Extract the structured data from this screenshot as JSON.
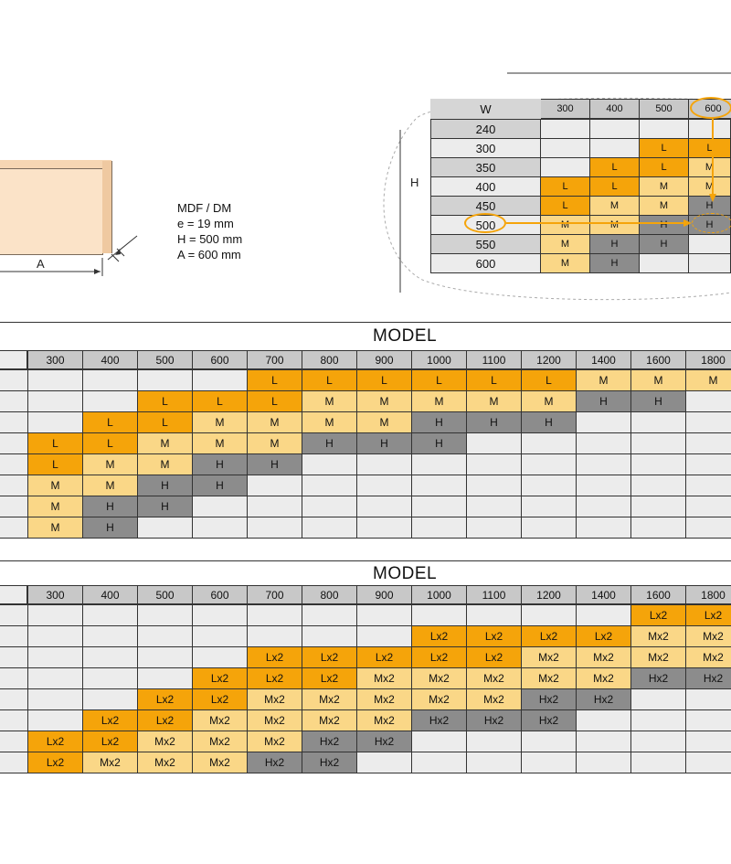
{
  "specs": {
    "material": "MDF / DM",
    "thickness": "e = 19 mm",
    "height": "H = 500 mm",
    "width": "A = 600 mm",
    "dim_label": "A"
  },
  "inset": {
    "w_label": "W",
    "h_label": "H",
    "cols": [
      "300",
      "400",
      "500",
      "600"
    ],
    "rows": [
      {
        "h": "240",
        "cells": [
          "",
          "",
          "",
          ""
        ]
      },
      {
        "h": "300",
        "cells": [
          "",
          "",
          "L",
          "L"
        ]
      },
      {
        "h": "350",
        "cells": [
          "",
          "L",
          "L",
          "M"
        ]
      },
      {
        "h": "400",
        "cells": [
          "L",
          "L",
          "M",
          "M"
        ]
      },
      {
        "h": "450",
        "cells": [
          "L",
          "M",
          "M",
          "H"
        ]
      },
      {
        "h": "500",
        "cells": [
          "M",
          "M",
          "H",
          "H"
        ]
      },
      {
        "h": "550",
        "cells": [
          "M",
          "H",
          "H",
          ""
        ]
      },
      {
        "h": "600",
        "cells": [
          "M",
          "H",
          "",
          ""
        ]
      }
    ]
  },
  "table1": {
    "title": "MODEL",
    "cols": [
      "300",
      "400",
      "500",
      "600",
      "700",
      "800",
      "900",
      "1000",
      "1100",
      "1200",
      "1400",
      "1600",
      "1800"
    ],
    "rows": [
      [
        "",
        "",
        "",
        "",
        "L",
        "L",
        "L",
        "L",
        "L",
        "L",
        "M",
        "M",
        "M"
      ],
      [
        "",
        "",
        "L",
        "L",
        "L",
        "M",
        "M",
        "M",
        "M",
        "M",
        "H",
        "H",
        ""
      ],
      [
        "",
        "L",
        "L",
        "M",
        "M",
        "M",
        "M",
        "H",
        "H",
        "H",
        "",
        "",
        ""
      ],
      [
        "L",
        "L",
        "M",
        "M",
        "M",
        "H",
        "H",
        "H",
        "",
        "",
        "",
        "",
        ""
      ],
      [
        "L",
        "M",
        "M",
        "H",
        "H",
        "",
        "",
        "",
        "",
        "",
        "",
        "",
        ""
      ],
      [
        "M",
        "M",
        "H",
        "H",
        "",
        "",
        "",
        "",
        "",
        "",
        "",
        "",
        ""
      ],
      [
        "M",
        "H",
        "H",
        "",
        "",
        "",
        "",
        "",
        "",
        "",
        "",
        "",
        ""
      ],
      [
        "M",
        "H",
        "",
        "",
        "",
        "",
        "",
        "",
        "",
        "",
        "",
        "",
        ""
      ]
    ]
  },
  "table2": {
    "title": "MODEL",
    "cols": [
      "300",
      "400",
      "500",
      "600",
      "700",
      "800",
      "900",
      "1000",
      "1100",
      "1200",
      "1400",
      "1600",
      "1800"
    ],
    "rows": [
      [
        "",
        "",
        "",
        "",
        "",
        "",
        "",
        "",
        "",
        "",
        "",
        "Lx2",
        "Lx2"
      ],
      [
        "",
        "",
        "",
        "",
        "",
        "",
        "",
        "Lx2",
        "Lx2",
        "Lx2",
        "Lx2",
        "Mx2",
        "Mx2"
      ],
      [
        "",
        "",
        "",
        "",
        "Lx2",
        "Lx2",
        "Lx2",
        "Lx2",
        "Lx2",
        "Mx2",
        "Mx2",
        "Mx2",
        "Mx2"
      ],
      [
        "",
        "",
        "",
        "Lx2",
        "Lx2",
        "Lx2",
        "Mx2",
        "Mx2",
        "Mx2",
        "Mx2",
        "Mx2",
        "Hx2",
        "Hx2"
      ],
      [
        "",
        "",
        "Lx2",
        "Lx2",
        "Mx2",
        "Mx2",
        "Mx2",
        "Mx2",
        "Mx2",
        "Hx2",
        "Hx2",
        "",
        ""
      ],
      [
        "",
        "Lx2",
        "Lx2",
        "Mx2",
        "Mx2",
        "Mx2",
        "Mx2",
        "Hx2",
        "Hx2",
        "Hx2",
        "",
        "",
        ""
      ],
      [
        "Lx2",
        "Lx2",
        "Mx2",
        "Mx2",
        "Mx2",
        "Hx2",
        "Hx2",
        "",
        "",
        "",
        "",
        "",
        ""
      ],
      [
        "Lx2",
        "Mx2",
        "Mx2",
        "Mx2",
        "Hx2",
        "Hx2",
        "",
        "",
        "",
        "",
        "",
        "",
        ""
      ]
    ]
  },
  "colors": {
    "L": "#f5a40a",
    "M": "#fad787",
    "H": "#8c8c8c",
    "empty": "#ececec",
    "header": "#c8c8c8",
    "highlight": "#f5a40a"
  }
}
